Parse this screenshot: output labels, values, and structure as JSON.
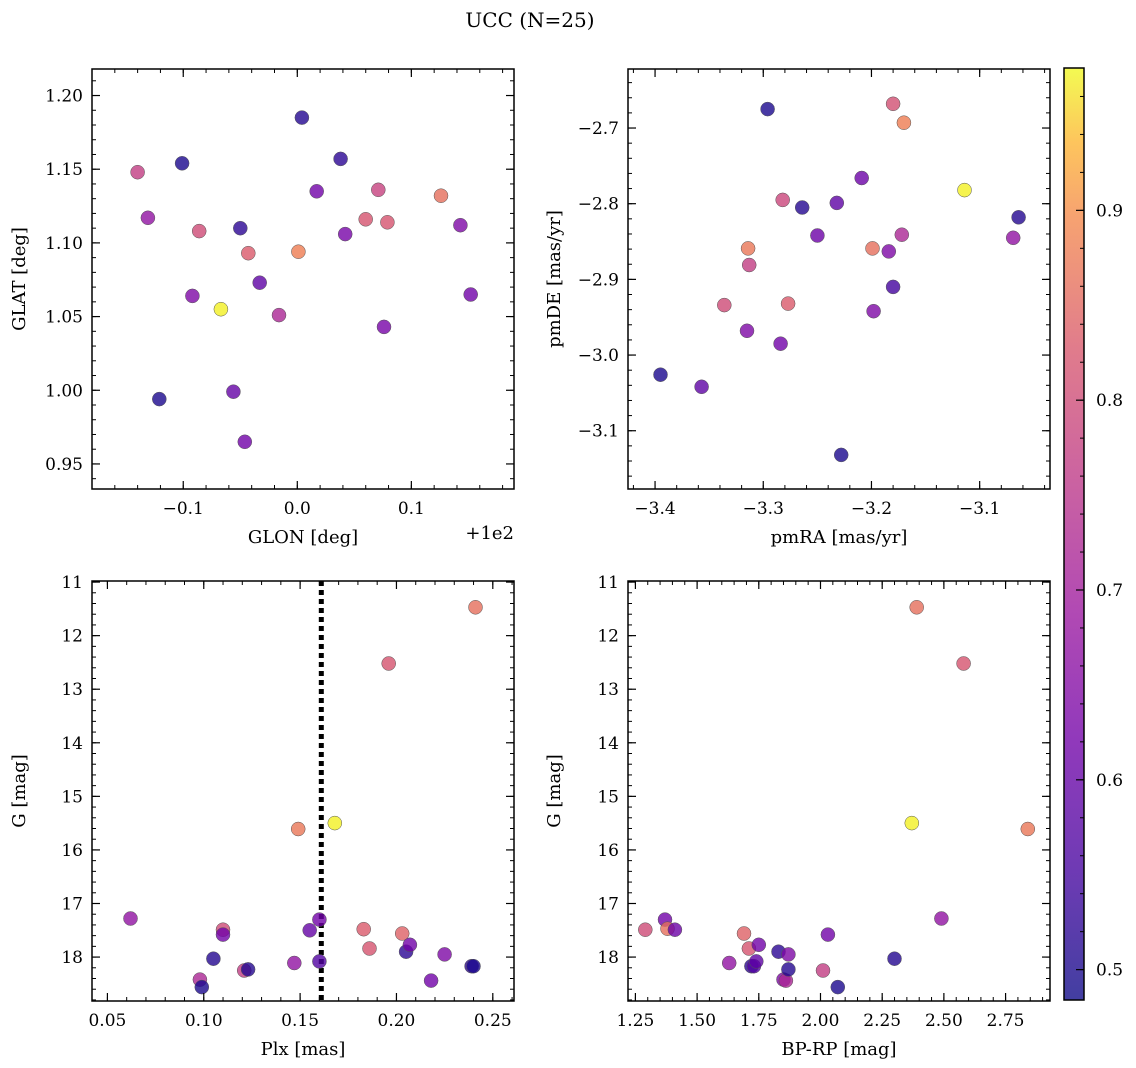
{
  "figure": {
    "title": "UCC (N=25)",
    "colorbar": {
      "min": 0.484,
      "max": 0.975,
      "ticks": [
        0.5,
        0.6,
        0.7,
        0.8,
        0.9
      ],
      "tick_labels": [
        "0.5",
        "0.6",
        "0.7",
        "0.8",
        "0.9"
      ],
      "colormap": "plasma"
    }
  },
  "chart_data": [
    {
      "type": "scatter",
      "id": "glon-glat",
      "xlabel": "GLON [deg]",
      "ylabel": "GLAT [deg]",
      "offset_label": "+1e2",
      "xlim": [
        -0.18,
        0.19
      ],
      "ylim": [
        0.933,
        1.218
      ],
      "xticks": [
        -0.1,
        0.0,
        0.1
      ],
      "xtick_labels": [
        "−0.1",
        "0.0",
        "0.1"
      ],
      "yticks": [
        0.95,
        1.0,
        1.05,
        1.1,
        1.15,
        1.2
      ],
      "ytick_labels": [
        "0.95",
        "1.00",
        "1.05",
        "1.10",
        "1.15",
        "1.20"
      ],
      "points": [
        {
          "x": -0.14,
          "y": 1.148,
          "c": 0.77
        },
        {
          "x": -0.131,
          "y": 1.117,
          "c": 0.67
        },
        {
          "x": -0.101,
          "y": 1.154,
          "c": 0.5
        },
        {
          "x": -0.092,
          "y": 1.064,
          "c": 0.64
        },
        {
          "x": -0.086,
          "y": 1.108,
          "c": 0.8
        },
        {
          "x": -0.067,
          "y": 1.055,
          "c": 0.97
        },
        {
          "x": -0.056,
          "y": 0.999,
          "c": 0.6
        },
        {
          "x": -0.05,
          "y": 1.11,
          "c": 0.52
        },
        {
          "x": -0.046,
          "y": 0.965,
          "c": 0.62
        },
        {
          "x": -0.043,
          "y": 1.093,
          "c": 0.83
        },
        {
          "x": -0.033,
          "y": 1.073,
          "c": 0.59
        },
        {
          "x": -0.016,
          "y": 1.051,
          "c": 0.72
        },
        {
          "x": 0.001,
          "y": 1.094,
          "c": 0.88
        },
        {
          "x": 0.004,
          "y": 1.185,
          "c": 0.51
        },
        {
          "x": 0.017,
          "y": 1.135,
          "c": 0.62
        },
        {
          "x": 0.038,
          "y": 1.157,
          "c": 0.52
        },
        {
          "x": 0.042,
          "y": 1.106,
          "c": 0.63
        },
        {
          "x": 0.06,
          "y": 1.116,
          "c": 0.82
        },
        {
          "x": 0.071,
          "y": 1.136,
          "c": 0.78
        },
        {
          "x": 0.076,
          "y": 1.043,
          "c": 0.63
        },
        {
          "x": 0.079,
          "y": 1.114,
          "c": 0.82
        },
        {
          "x": 0.126,
          "y": 1.132,
          "c": 0.86
        },
        {
          "x": 0.143,
          "y": 1.112,
          "c": 0.64
        },
        {
          "x": 0.152,
          "y": 1.065,
          "c": 0.62
        },
        {
          "x": -0.121,
          "y": 0.994,
          "c": 0.5
        }
      ]
    },
    {
      "type": "scatter",
      "id": "pmra-pmde",
      "xlabel": "pmRA [mas/yr]",
      "ylabel": "pmDE [mas/yr]",
      "xlim": [
        -3.425,
        -3.035
      ],
      "ylim": [
        -3.177,
        -2.622
      ],
      "xticks": [
        -3.4,
        -3.3,
        -3.2,
        -3.1
      ],
      "xtick_labels": [
        "−3.4",
        "−3.3",
        "−3.2",
        "−3.1"
      ],
      "yticks": [
        -3.1,
        -3.0,
        -2.9,
        -2.8,
        -2.7
      ],
      "ytick_labels": [
        "−3.1",
        "−3.0",
        "−2.9",
        "−2.8",
        "−2.7"
      ],
      "points": [
        {
          "x": -3.395,
          "y": -3.026,
          "c": 0.5
        },
        {
          "x": -3.357,
          "y": -3.042,
          "c": 0.59
        },
        {
          "x": -3.336,
          "y": -2.934,
          "c": 0.8
        },
        {
          "x": -3.315,
          "y": -2.968,
          "c": 0.64
        },
        {
          "x": -3.314,
          "y": -2.859,
          "c": 0.87
        },
        {
          "x": -3.313,
          "y": -2.881,
          "c": 0.77
        },
        {
          "x": -3.296,
          "y": -2.675,
          "c": 0.5
        },
        {
          "x": -3.284,
          "y": -2.985,
          "c": 0.62
        },
        {
          "x": -3.282,
          "y": -2.795,
          "c": 0.79
        },
        {
          "x": -3.277,
          "y": -2.932,
          "c": 0.83
        },
        {
          "x": -3.264,
          "y": -2.805,
          "c": 0.51
        },
        {
          "x": -3.25,
          "y": -2.842,
          "c": 0.61
        },
        {
          "x": -3.232,
          "y": -2.799,
          "c": 0.59
        },
        {
          "x": -3.228,
          "y": -3.132,
          "c": 0.5
        },
        {
          "x": -3.209,
          "y": -2.766,
          "c": 0.61
        },
        {
          "x": -3.199,
          "y": -2.859,
          "c": 0.86
        },
        {
          "x": -3.198,
          "y": -2.942,
          "c": 0.64
        },
        {
          "x": -3.184,
          "y": -2.863,
          "c": 0.64
        },
        {
          "x": -3.18,
          "y": -2.668,
          "c": 0.81
        },
        {
          "x": -3.18,
          "y": -2.91,
          "c": 0.55
        },
        {
          "x": -3.172,
          "y": -2.841,
          "c": 0.72
        },
        {
          "x": -3.17,
          "y": -2.693,
          "c": 0.88
        },
        {
          "x": -3.114,
          "y": -2.782,
          "c": 0.97
        },
        {
          "x": -3.069,
          "y": -2.845,
          "c": 0.67
        },
        {
          "x": -3.064,
          "y": -2.818,
          "c": 0.51
        }
      ]
    },
    {
      "type": "scatter",
      "id": "plx-g",
      "xlabel": "Plx [mas]",
      "ylabel": "G [mag]",
      "xlim": [
        0.042,
        0.261
      ],
      "ylim": [
        18.82,
        10.98
      ],
      "inverted_y": true,
      "reference_line": {
        "orientation": "vertical",
        "x": 0.161,
        "style": "dotted"
      },
      "xticks": [
        0.05,
        0.1,
        0.15,
        0.2,
        0.25
      ],
      "xtick_labels": [
        "0.05",
        "0.10",
        "0.15",
        "0.20",
        "0.25"
      ],
      "yticks": [
        11,
        12,
        13,
        14,
        15,
        16,
        17,
        18
      ],
      "ytick_labels": [
        "11",
        "12",
        "13",
        "14",
        "15",
        "16",
        "17",
        "18"
      ],
      "points": [
        {
          "x": 0.062,
          "y": 17.28,
          "c": 0.67
        },
        {
          "x": 0.098,
          "y": 18.42,
          "c": 0.72
        },
        {
          "x": 0.099,
          "y": 18.56,
          "c": 0.5
        },
        {
          "x": 0.105,
          "y": 18.03,
          "c": 0.51
        },
        {
          "x": 0.11,
          "y": 17.49,
          "c": 0.8
        },
        {
          "x": 0.11,
          "y": 17.58,
          "c": 0.62
        },
        {
          "x": 0.121,
          "y": 18.25,
          "c": 0.77
        },
        {
          "x": 0.123,
          "y": 18.23,
          "c": 0.51
        },
        {
          "x": 0.147,
          "y": 18.11,
          "c": 0.67
        },
        {
          "x": 0.149,
          "y": 15.61,
          "c": 0.87
        },
        {
          "x": 0.155,
          "y": 17.5,
          "c": 0.6
        },
        {
          "x": 0.16,
          "y": 17.3,
          "c": 0.62
        },
        {
          "x": 0.16,
          "y": 18.08,
          "c": 0.57
        },
        {
          "x": 0.168,
          "y": 15.5,
          "c": 0.97
        },
        {
          "x": 0.183,
          "y": 17.48,
          "c": 0.83
        },
        {
          "x": 0.186,
          "y": 17.84,
          "c": 0.82
        },
        {
          "x": 0.196,
          "y": 12.52,
          "c": 0.82
        },
        {
          "x": 0.203,
          "y": 17.56,
          "c": 0.84
        },
        {
          "x": 0.205,
          "y": 17.9,
          "c": 0.52
        },
        {
          "x": 0.207,
          "y": 17.77,
          "c": 0.62
        },
        {
          "x": 0.218,
          "y": 18.44,
          "c": 0.62
        },
        {
          "x": 0.225,
          "y": 17.95,
          "c": 0.64
        },
        {
          "x": 0.239,
          "y": 18.17,
          "c": 0.52
        },
        {
          "x": 0.24,
          "y": 18.17,
          "c": 0.5
        },
        {
          "x": 0.241,
          "y": 11.47,
          "c": 0.86
        }
      ]
    },
    {
      "type": "scatter",
      "id": "bprp-g",
      "xlabel": "BP-RP [mag]",
      "ylabel": "G [mag]",
      "xlim": [
        1.22,
        2.93
      ],
      "ylim": [
        18.82,
        10.98
      ],
      "inverted_y": true,
      "xticks": [
        1.25,
        1.5,
        1.75,
        2.0,
        2.25,
        2.5,
        2.75
      ],
      "xtick_labels": [
        "1.25",
        "1.50",
        "1.75",
        "2.00",
        "2.25",
        "2.50",
        "2.75"
      ],
      "yticks": [
        11,
        12,
        13,
        14,
        15,
        16,
        17,
        18
      ],
      "ytick_labels": [
        "11",
        "12",
        "13",
        "14",
        "15",
        "16",
        "17",
        "18"
      ],
      "points": [
        {
          "x": 1.29,
          "y": 17.49,
          "c": 0.8
        },
        {
          "x": 1.37,
          "y": 17.3,
          "c": 0.62
        },
        {
          "x": 1.38,
          "y": 17.47,
          "c": 0.86
        },
        {
          "x": 1.41,
          "y": 17.49,
          "c": 0.61
        },
        {
          "x": 1.63,
          "y": 18.11,
          "c": 0.67
        },
        {
          "x": 1.69,
          "y": 17.56,
          "c": 0.84
        },
        {
          "x": 1.71,
          "y": 17.84,
          "c": 0.82
        },
        {
          "x": 1.72,
          "y": 18.17,
          "c": 0.52
        },
        {
          "x": 1.73,
          "y": 18.17,
          "c": 0.57
        },
        {
          "x": 1.74,
          "y": 18.08,
          "c": 0.59
        },
        {
          "x": 1.75,
          "y": 17.77,
          "c": 0.62
        },
        {
          "x": 1.83,
          "y": 17.9,
          "c": 0.52
        },
        {
          "x": 1.85,
          "y": 18.42,
          "c": 0.64
        },
        {
          "x": 1.86,
          "y": 18.44,
          "c": 0.72
        },
        {
          "x": 1.87,
          "y": 17.95,
          "c": 0.64
        },
        {
          "x": 1.87,
          "y": 18.23,
          "c": 0.51
        },
        {
          "x": 2.01,
          "y": 18.25,
          "c": 0.77
        },
        {
          "x": 2.03,
          "y": 17.58,
          "c": 0.62
        },
        {
          "x": 2.07,
          "y": 18.56,
          "c": 0.5
        },
        {
          "x": 2.3,
          "y": 18.03,
          "c": 0.51
        },
        {
          "x": 2.37,
          "y": 15.5,
          "c": 0.97
        },
        {
          "x": 2.39,
          "y": 11.47,
          "c": 0.86
        },
        {
          "x": 2.49,
          "y": 17.28,
          "c": 0.67
        },
        {
          "x": 2.58,
          "y": 12.52,
          "c": 0.82
        },
        {
          "x": 2.84,
          "y": 15.61,
          "c": 0.87
        }
      ]
    }
  ]
}
